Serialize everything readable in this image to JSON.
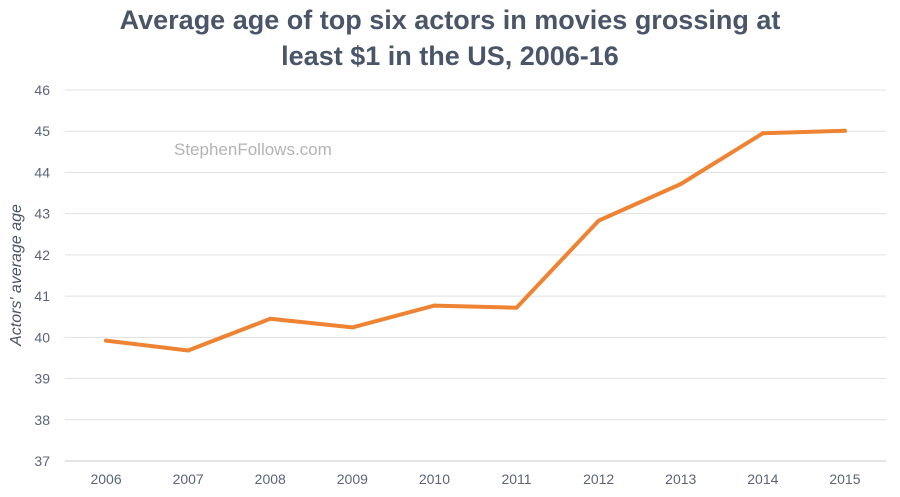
{
  "chart_data": {
    "type": "line",
    "title_line1": "Average age of top six actors in movies grossing at",
    "title_line2": "least $1 in the US, 2006-16",
    "ylabel": "Actors' average age",
    "xlabel": "",
    "watermark": "StephenFollows.com",
    "ylim": [
      37,
      46
    ],
    "yticks": [
      37,
      38,
      39,
      40,
      41,
      42,
      43,
      44,
      45,
      46
    ],
    "grid": true,
    "categories": [
      "2006",
      "2007",
      "2008",
      "2009",
      "2010",
      "2011",
      "2012",
      "2013",
      "2014",
      "2015"
    ],
    "series": [
      {
        "values": [
          39.92,
          39.68,
          40.45,
          40.24,
          40.77,
          40.72,
          42.83,
          43.72,
          44.95,
          45.01
        ],
        "color": "#ee8433"
      }
    ]
  }
}
